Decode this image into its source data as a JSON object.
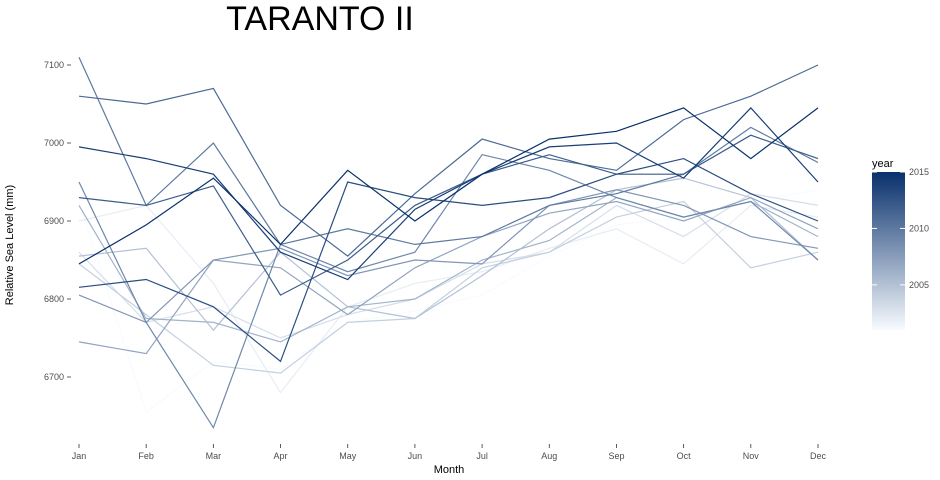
{
  "chart_data": {
    "type": "line",
    "title": "TARANTO II",
    "xlabel": "Month",
    "ylabel": "Relative Sea Level (mm)",
    "categories": [
      "Jan",
      "Feb",
      "Mar",
      "Apr",
      "May",
      "Jun",
      "Jul",
      "Aug",
      "Sep",
      "Oct",
      "Nov",
      "Dec"
    ],
    "y_ticks": [
      "6700",
      "6800",
      "6900",
      "7000",
      "7100"
    ],
    "ylim": [
      6620,
      7115
    ],
    "grid": false,
    "legend": {
      "title": "year",
      "placement": "right",
      "ticks": [
        "2005",
        "2010",
        "2015"
      ],
      "range": [
        2001,
        2015
      ],
      "color_low": "#f7fbff",
      "color_high": "#08306b"
    },
    "series": [
      {
        "year": 2001,
        "values": [
          6925,
          6655,
          6720,
          6710,
          6770,
          6785,
          6805,
          6855,
          6895,
          6905,
          6925,
          6940
        ]
      },
      {
        "year": 2002,
        "values": [
          6900,
          6920,
          6820,
          6680,
          6790,
          6820,
          6835,
          6865,
          6890,
          6845,
          6920,
          6905
        ]
      },
      {
        "year": 2003,
        "values": [
          6860,
          6770,
          6790,
          6750,
          6780,
          6800,
          6845,
          6860,
          6920,
          6880,
          6935,
          6920
        ]
      },
      {
        "year": 2004,
        "values": [
          6845,
          6780,
          6715,
          6705,
          6770,
          6775,
          6840,
          6860,
          6905,
          6925,
          6840,
          6860
        ]
      },
      {
        "year": 2005,
        "values": [
          6855,
          6865,
          6760,
          6860,
          6790,
          6775,
          6830,
          6890,
          6940,
          6955,
          6930,
          6850
        ]
      },
      {
        "year": 2006,
        "values": [
          6920,
          6775,
          6770,
          6745,
          6790,
          6800,
          6850,
          6875,
          6930,
          6905,
          6925,
          6880
        ]
      },
      {
        "year": 2007,
        "values": [
          6745,
          6730,
          6850,
          6840,
          6780,
          6840,
          6880,
          6910,
          6925,
          6900,
          6930,
          6890
        ]
      },
      {
        "year": 2008,
        "values": [
          6805,
          6770,
          6850,
          6865,
          6830,
          6850,
          6845,
          6920,
          6940,
          6920,
          6880,
          6865
        ]
      },
      {
        "year": 2009,
        "values": [
          6950,
          6770,
          6635,
          6870,
          6835,
          6860,
          6985,
          6965,
          6930,
          6905,
          6925,
          6850
        ]
      },
      {
        "year": 2010,
        "values": [
          7110,
          6920,
          7000,
          6870,
          6890,
          6870,
          6880,
          6920,
          6935,
          6960,
          7020,
          6975
        ]
      },
      {
        "year": 2011,
        "values": [
          7060,
          7050,
          7070,
          6920,
          6855,
          6935,
          7005,
          6980,
          6965,
          7030,
          7060,
          7100
        ]
      },
      {
        "year": 2012,
        "values": [
          6930,
          6920,
          6945,
          6805,
          6850,
          6920,
          6960,
          6985,
          6960,
          6960,
          7010,
          6980
        ]
      },
      {
        "year": 2013,
        "values": [
          6815,
          6825,
          6790,
          6720,
          6950,
          6930,
          6920,
          6930,
          6960,
          6980,
          6935,
          6900
        ]
      },
      {
        "year": 2014,
        "values": [
          6995,
          6980,
          6960,
          6860,
          6825,
          6915,
          6960,
          6995,
          7000,
          6955,
          7045,
          6950
        ]
      },
      {
        "year": 2015,
        "values": [
          6845,
          6895,
          6955,
          6870,
          6965,
          6900,
          6960,
          7005,
          7015,
          7045,
          6980,
          7045
        ]
      }
    ]
  }
}
